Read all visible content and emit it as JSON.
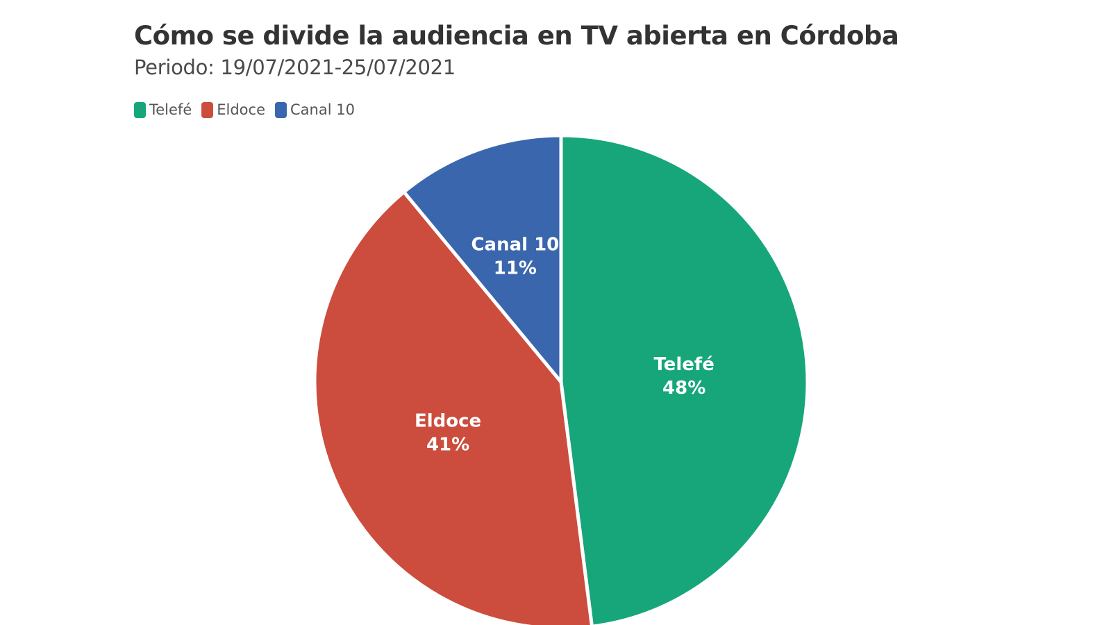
{
  "chart": {
    "title": "Cómo se divide la audiencia en TV abierta en Córdoba",
    "subtitle": "Periodo: 19/07/2021-25/07/2021"
  },
  "legend": [
    {
      "label": "Telefé",
      "color": "#16a67a"
    },
    {
      "label": "Eldoce",
      "color": "#cc4d3d"
    },
    {
      "label": "Canal 10",
      "color": "#3a66ad"
    }
  ],
  "chart_data": {
    "type": "pie",
    "title": "Cómo se divide la audiencia en TV abierta en Córdoba",
    "subtitle": "Periodo: 19/07/2021-25/07/2021",
    "legend_position": "top-left",
    "slices": [
      {
        "name": "Telefé",
        "value": 48,
        "label": "48%",
        "color": "#16a67a"
      },
      {
        "name": "Eldoce",
        "value": 41,
        "label": "41%",
        "color": "#cc4d3d"
      },
      {
        "name": "Canal 10",
        "value": 11,
        "label": "11%",
        "color": "#3a66ad"
      }
    ]
  }
}
